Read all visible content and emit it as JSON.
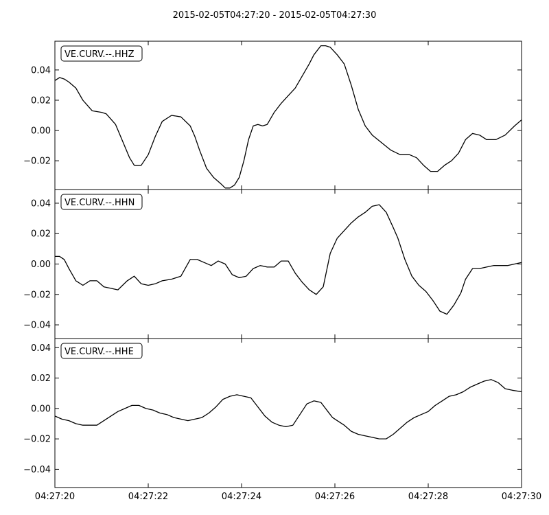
{
  "chart_data": {
    "type": "line",
    "title": "2015-02-05T04:27:20  -  2015-02-05T04:27:30",
    "x_tick_labels": [
      "04:27:20",
      "04:27:22",
      "04:27:24",
      "04:27:26",
      "04:27:28",
      "04:27:30"
    ],
    "x_ticks_seconds": [
      0,
      2,
      4,
      6,
      8,
      10
    ],
    "xlim_seconds": [
      0,
      10
    ],
    "x_label_on_all_panels": false,
    "grid": false,
    "line_color": "#000000",
    "panels": [
      {
        "name": "VE.CURV.--.HHZ",
        "legend_position": "top-left",
        "ylim": [
          -0.039,
          0.059
        ],
        "y_ticks": [
          0.04,
          0.02,
          0.0,
          -0.02
        ],
        "y_tick_labels": [
          "0.04",
          "0.02",
          "0.00",
          "−0.02"
        ],
        "series": {
          "x": [
            0.0,
            0.1,
            0.2,
            0.3,
            0.45,
            0.6,
            0.8,
            1.0,
            1.1,
            1.3,
            1.45,
            1.6,
            1.7,
            1.85,
            2.0,
            2.15,
            2.3,
            2.5,
            2.7,
            2.9,
            3.0,
            3.1,
            3.25,
            3.4,
            3.55,
            3.65,
            3.75,
            3.85,
            3.95,
            4.05,
            4.15,
            4.25,
            4.35,
            4.45,
            4.55,
            4.7,
            4.85,
            5.0,
            5.15,
            5.3,
            5.45,
            5.55,
            5.7,
            5.8,
            5.9,
            6.05,
            6.2,
            6.35,
            6.5,
            6.65,
            6.8,
            7.0,
            7.2,
            7.4,
            7.6,
            7.75,
            7.9,
            8.05,
            8.2,
            8.35,
            8.5,
            8.65,
            8.8,
            8.95,
            9.1,
            9.25,
            9.45,
            9.65,
            9.85,
            10.0
          ],
          "y": [
            0.033,
            0.035,
            0.034,
            0.032,
            0.028,
            0.02,
            0.013,
            0.012,
            0.011,
            0.004,
            -0.007,
            -0.018,
            -0.023,
            -0.023,
            -0.016,
            -0.004,
            0.006,
            0.01,
            0.009,
            0.003,
            -0.004,
            -0.013,
            -0.025,
            -0.031,
            -0.035,
            -0.038,
            -0.038,
            -0.036,
            -0.031,
            -0.02,
            -0.006,
            0.003,
            0.004,
            0.003,
            0.004,
            0.012,
            0.018,
            0.023,
            0.028,
            0.036,
            0.044,
            0.05,
            0.056,
            0.056,
            0.055,
            0.05,
            0.044,
            0.03,
            0.014,
            0.003,
            -0.003,
            -0.008,
            -0.013,
            -0.016,
            -0.016,
            -0.018,
            -0.023,
            -0.027,
            -0.027,
            -0.023,
            -0.02,
            -0.015,
            -0.006,
            -0.002,
            -0.003,
            -0.006,
            -0.006,
            -0.003,
            0.003,
            0.007
          ]
        }
      },
      {
        "name": "VE.CURV.--.HHN",
        "legend_position": "top-left",
        "ylim": [
          -0.049,
          0.049
        ],
        "y_ticks": [
          0.04,
          0.02,
          0.0,
          -0.02,
          -0.04
        ],
        "y_tick_labels": [
          "0.04",
          "0.02",
          "0.00",
          "−0.02",
          "−0.04"
        ],
        "series": {
          "x": [
            0.0,
            0.1,
            0.2,
            0.3,
            0.45,
            0.6,
            0.75,
            0.9,
            1.05,
            1.2,
            1.35,
            1.55,
            1.7,
            1.85,
            2.0,
            2.15,
            2.3,
            2.5,
            2.7,
            2.9,
            3.05,
            3.2,
            3.35,
            3.5,
            3.65,
            3.8,
            3.95,
            4.1,
            4.25,
            4.4,
            4.55,
            4.7,
            4.85,
            5.0,
            5.15,
            5.3,
            5.45,
            5.6,
            5.75,
            5.9,
            6.05,
            6.2,
            6.35,
            6.5,
            6.65,
            6.8,
            6.95,
            7.1,
            7.25,
            7.35,
            7.5,
            7.65,
            7.8,
            7.95,
            8.1,
            8.25,
            8.4,
            8.55,
            8.7,
            8.8,
            8.95,
            9.1,
            9.25,
            9.4,
            9.55,
            9.7,
            9.85,
            10.0
          ],
          "y": [
            0.005,
            0.005,
            0.003,
            -0.003,
            -0.011,
            -0.014,
            -0.011,
            -0.011,
            -0.015,
            -0.016,
            -0.017,
            -0.011,
            -0.008,
            -0.013,
            -0.014,
            -0.013,
            -0.011,
            -0.01,
            -0.008,
            0.003,
            0.003,
            0.001,
            -0.001,
            0.002,
            0.0,
            -0.007,
            -0.009,
            -0.008,
            -0.003,
            -0.001,
            -0.002,
            -0.002,
            0.002,
            0.002,
            -0.006,
            -0.012,
            -0.017,
            -0.02,
            -0.015,
            0.007,
            0.017,
            0.022,
            0.027,
            0.031,
            0.034,
            0.038,
            0.039,
            0.034,
            0.024,
            0.017,
            0.003,
            -0.008,
            -0.014,
            -0.018,
            -0.024,
            -0.031,
            -0.033,
            -0.027,
            -0.019,
            -0.01,
            -0.003,
            -0.003,
            -0.002,
            -0.001,
            -0.001,
            -0.001,
            0.0,
            0.001
          ]
        }
      },
      {
        "name": "VE.CURV.--.HHE",
        "legend_position": "top-left",
        "ylim": [
          -0.052,
          0.046
        ],
        "y_ticks": [
          0.04,
          0.02,
          0.0,
          -0.02,
          -0.04
        ],
        "y_tick_labels": [
          "0.04",
          "0.02",
          "0.00",
          "−0.02",
          "−0.04"
        ],
        "series": {
          "x": [
            0.0,
            0.15,
            0.3,
            0.45,
            0.6,
            0.75,
            0.9,
            1.05,
            1.2,
            1.35,
            1.5,
            1.65,
            1.8,
            1.95,
            2.1,
            2.25,
            2.4,
            2.55,
            2.7,
            2.85,
            3.0,
            3.15,
            3.3,
            3.45,
            3.6,
            3.75,
            3.9,
            4.05,
            4.2,
            4.35,
            4.5,
            4.65,
            4.8,
            4.95,
            5.1,
            5.25,
            5.4,
            5.55,
            5.7,
            5.85,
            5.95,
            6.05,
            6.2,
            6.35,
            6.5,
            6.65,
            6.8,
            6.95,
            7.1,
            7.25,
            7.4,
            7.55,
            7.7,
            7.85,
            8.0,
            8.15,
            8.3,
            8.45,
            8.6,
            8.75,
            8.9,
            9.05,
            9.2,
            9.35,
            9.5,
            9.65,
            9.8,
            10.0
          ],
          "y": [
            -0.005,
            -0.007,
            -0.008,
            -0.01,
            -0.011,
            -0.011,
            -0.011,
            -0.008,
            -0.005,
            -0.002,
            0.0,
            0.002,
            0.002,
            0.0,
            -0.001,
            -0.003,
            -0.004,
            -0.006,
            -0.007,
            -0.008,
            -0.007,
            -0.006,
            -0.003,
            0.001,
            0.006,
            0.008,
            0.009,
            0.008,
            0.007,
            0.001,
            -0.005,
            -0.009,
            -0.011,
            -0.012,
            -0.011,
            -0.004,
            0.003,
            0.005,
            0.004,
            -0.002,
            -0.006,
            -0.008,
            -0.011,
            -0.015,
            -0.017,
            -0.018,
            -0.019,
            -0.02,
            -0.02,
            -0.017,
            -0.013,
            -0.009,
            -0.006,
            -0.004,
            -0.002,
            0.002,
            0.005,
            0.008,
            0.009,
            0.011,
            0.014,
            0.016,
            0.018,
            0.019,
            0.017,
            0.013,
            0.012,
            0.011
          ]
        }
      }
    ]
  }
}
